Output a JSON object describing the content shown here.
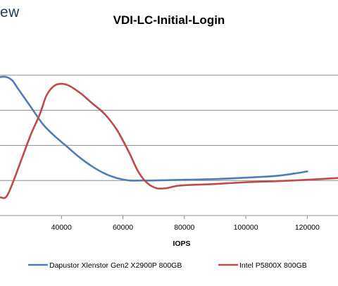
{
  "logo_fragment": "ew",
  "chart_data": {
    "type": "line",
    "title": "VDI-LC-Initial-Login",
    "xlabel": "IOPS",
    "ylabel": "",
    "xlim": [
      20000,
      130000
    ],
    "ylim": [
      0,
      5
    ],
    "x_ticks": [
      40000,
      60000,
      80000,
      100000,
      120000
    ],
    "x_tick_labels": [
      "40000",
      "60000",
      "80000",
      "100000",
      "120000"
    ],
    "y_gridlines": [
      1,
      2,
      3,
      4
    ],
    "legend_position": "bottom",
    "grid": true,
    "series": [
      {
        "name": "Dapustor Xlenstor Gen2 X2900P 800GB",
        "color": "#4a7ebb",
        "points": [
          [
            20000,
            3.95
          ],
          [
            22000,
            3.95
          ],
          [
            24000,
            3.85
          ],
          [
            26000,
            3.6
          ],
          [
            30000,
            3.1
          ],
          [
            34000,
            2.6
          ],
          [
            38000,
            2.25
          ],
          [
            42000,
            1.95
          ],
          [
            46000,
            1.65
          ],
          [
            50000,
            1.4
          ],
          [
            54000,
            1.2
          ],
          [
            58000,
            1.07
          ],
          [
            62000,
            1.0
          ],
          [
            66000,
            1.0
          ],
          [
            70000,
            1.0
          ],
          [
            80000,
            1.02
          ],
          [
            90000,
            1.04
          ],
          [
            100000,
            1.08
          ],
          [
            110000,
            1.13
          ],
          [
            116000,
            1.2
          ],
          [
            120000,
            1.26
          ]
        ]
      },
      {
        "name": "Intel P5800X 800GB",
        "color": "#be4b48",
        "points": [
          [
            20000,
            0.52
          ],
          [
            22000,
            0.53
          ],
          [
            24000,
            0.9
          ],
          [
            27000,
            1.6
          ],
          [
            30000,
            2.3
          ],
          [
            33000,
            2.9
          ],
          [
            35000,
            3.4
          ],
          [
            37000,
            3.65
          ],
          [
            39000,
            3.75
          ],
          [
            42000,
            3.72
          ],
          [
            46000,
            3.5
          ],
          [
            50000,
            3.2
          ],
          [
            54000,
            2.9
          ],
          [
            58000,
            2.45
          ],
          [
            62000,
            1.8
          ],
          [
            65000,
            1.25
          ],
          [
            68000,
            0.92
          ],
          [
            71000,
            0.78
          ],
          [
            74000,
            0.78
          ],
          [
            78000,
            0.85
          ],
          [
            84000,
            0.88
          ],
          [
            90000,
            0.9
          ],
          [
            100000,
            0.95
          ],
          [
            110000,
            0.98
          ],
          [
            120000,
            1.02
          ],
          [
            130000,
            1.07
          ]
        ]
      }
    ]
  }
}
